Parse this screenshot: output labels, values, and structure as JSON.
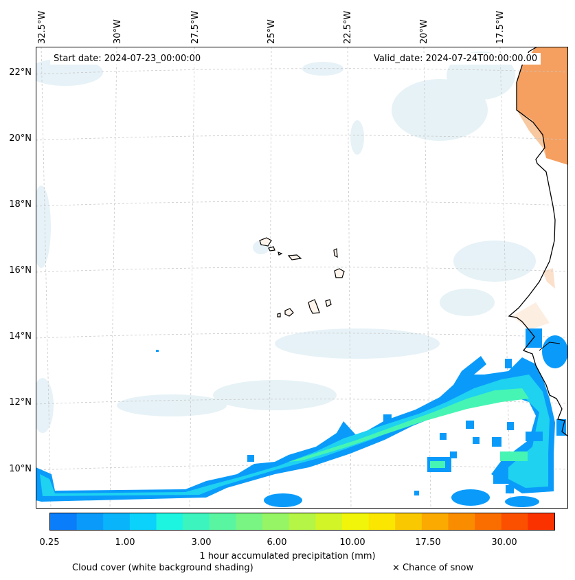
{
  "map": {
    "start_date": "Start date: 2024-07-23_00:00:00",
    "valid_date": "Valid_date: 2024-07-24T00:00:00.00",
    "lon_labels": [
      "32.5°W",
      "30°W",
      "27.5°W",
      "25°W",
      "22.5°W",
      "20°W",
      "17.5°W"
    ],
    "lat_labels": [
      "22°N",
      "20°N",
      "18°N",
      "16°N",
      "14°N",
      "12°N",
      "10°N"
    ]
  },
  "colorbar": {
    "tick_labels": [
      "0.25",
      "1.00",
      "3.00",
      "6.00",
      "10.00",
      "17.50",
      "30.00"
    ],
    "colors": [
      "#0a7dfa",
      "#0a9bfa",
      "#0ab4fa",
      "#0ad2fa",
      "#1ef5e1",
      "#3cf5be",
      "#5af5a0",
      "#78f582",
      "#96f564",
      "#b4f546",
      "#d2f528",
      "#f0f50a",
      "#fae600",
      "#fac800",
      "#faaa00",
      "#fa8c00",
      "#fa6e00",
      "#fa5000",
      "#fa3200"
    ],
    "title": "1 hour accumulated precipitation (mm)"
  },
  "legend": {
    "cloud_cover": "Cloud cover (white background shading)",
    "snow": "× Chance of snow"
  },
  "palette": {
    "precip_outer": "#0a9bfa",
    "precip_mid": "#1ed2f0",
    "precip_inner": "#46f5b4",
    "land_heat": "#f5a060",
    "cloud": "#d2e8f0",
    "coast": "#000000",
    "grid": "#c8c8c8"
  }
}
